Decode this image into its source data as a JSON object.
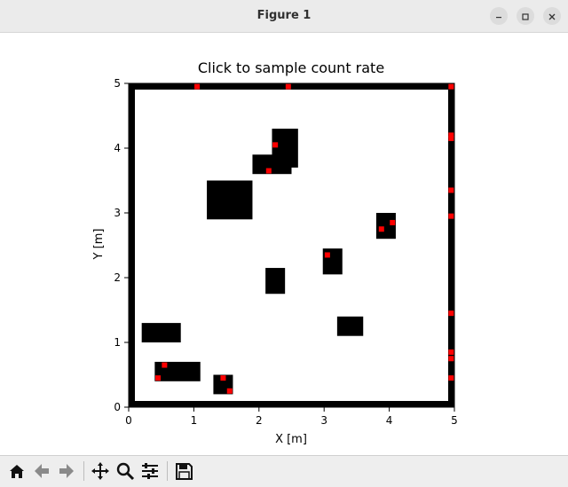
{
  "window": {
    "title": "Figure 1",
    "controls": [
      "minimize-icon",
      "maximize-icon",
      "close-icon"
    ]
  },
  "toolbar": {
    "buttons": [
      "home-icon",
      "back-icon",
      "forward-icon",
      "pan-icon",
      "zoom-icon",
      "configure-subplots-icon",
      "save-icon"
    ]
  },
  "chart_data": {
    "type": "map",
    "title": "Click to sample count rate",
    "xlabel": "X [m]",
    "ylabel": "Y [m]",
    "xlim": [
      0,
      5
    ],
    "ylim": [
      0,
      5
    ],
    "xticks": [
      "0",
      "1",
      "2",
      "3",
      "4",
      "5"
    ],
    "yticks": [
      "0",
      "1",
      "2",
      "3",
      "4",
      "5"
    ],
    "wall_color": "#000000",
    "marker_color": "#ff0000",
    "obstacles": [
      {
        "x0": 1.2,
        "y0": 2.9,
        "x1": 1.9,
        "y1": 3.5
      },
      {
        "x0": 2.2,
        "y0": 3.7,
        "x1": 2.6,
        "y1": 4.3
      },
      {
        "x0": 1.9,
        "y0": 3.6,
        "x1": 2.5,
        "y1": 3.9
      },
      {
        "x0": 3.8,
        "y0": 2.6,
        "x1": 4.1,
        "y1": 3.0
      },
      {
        "x0": 2.98,
        "y0": 2.05,
        "x1": 3.28,
        "y1": 2.45
      },
      {
        "x0": 2.1,
        "y0": 1.75,
        "x1": 2.4,
        "y1": 2.15
      },
      {
        "x0": 3.2,
        "y0": 1.1,
        "x1": 3.6,
        "y1": 1.4
      },
      {
        "x0": 0.2,
        "y0": 1.0,
        "x1": 0.8,
        "y1": 1.3
      },
      {
        "x0": 0.4,
        "y0": 0.4,
        "x1": 1.1,
        "y1": 0.7
      },
      {
        "x0": 1.3,
        "y0": 0.2,
        "x1": 1.6,
        "y1": 0.5
      }
    ],
    "markers": [
      {
        "x": 1.05,
        "y": 4.95
      },
      {
        "x": 2.45,
        "y": 4.95
      },
      {
        "x": 4.95,
        "y": 4.95
      },
      {
        "x": 4.95,
        "y": 4.2
      },
      {
        "x": 4.95,
        "y": 4.15
      },
      {
        "x": 4.95,
        "y": 3.35
      },
      {
        "x": 4.95,
        "y": 2.95
      },
      {
        "x": 4.95,
        "y": 1.45
      },
      {
        "x": 4.95,
        "y": 0.85
      },
      {
        "x": 4.95,
        "y": 0.75
      },
      {
        "x": 4.95,
        "y": 0.45
      },
      {
        "x": 2.25,
        "y": 4.05
      },
      {
        "x": 2.15,
        "y": 3.65
      },
      {
        "x": 4.05,
        "y": 2.85
      },
      {
        "x": 3.88,
        "y": 2.75
      },
      {
        "x": 3.05,
        "y": 2.35
      },
      {
        "x": 0.55,
        "y": 0.65
      },
      {
        "x": 0.45,
        "y": 0.45
      },
      {
        "x": 1.45,
        "y": 0.45
      },
      {
        "x": 1.55,
        "y": 0.25
      }
    ]
  }
}
